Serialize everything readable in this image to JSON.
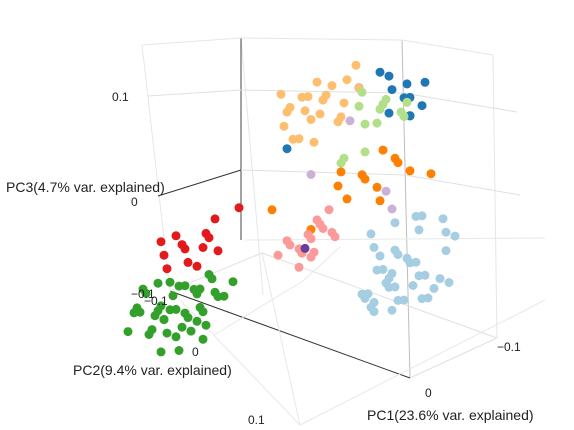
{
  "chart_data": {
    "type": "scatter",
    "dimensions": 3,
    "grid": true,
    "axes": {
      "x": {
        "title": "PC1(23.6% var. explained)",
        "ticks": [
          "−0.1",
          "0"
        ],
        "range": [
          -0.15,
          0.15
        ]
      },
      "y": {
        "title": "PC2(9.4% var. explained)",
        "ticks": [
          "−0.1",
          "0",
          "0.1"
        ],
        "range": [
          -0.15,
          0.15
        ]
      },
      "z": {
        "title": "PC3(4.7% var. explained)",
        "ticks": [
          "−0.1",
          "0",
          "0.1"
        ],
        "range": [
          -0.12,
          0.14
        ]
      }
    },
    "series": [
      {
        "color": "#1f78b4",
        "points": [
          [
            -0.03,
            -0.04,
            0.11
          ],
          [
            -0.02,
            -0.05,
            0.12
          ],
          [
            -0.04,
            -0.04,
            0.1
          ],
          [
            -0.03,
            -0.06,
            0.09
          ],
          [
            -0.01,
            -0.03,
            0.12
          ],
          [
            -0.05,
            -0.05,
            0.11
          ],
          [
            -0.02,
            -0.07,
            0.1
          ],
          [
            0.02,
            0.01,
            0.08
          ],
          [
            0.0,
            -0.1,
            0.05
          ],
          [
            -0.06,
            -0.02,
            0.09
          ],
          [
            0.01,
            -0.09,
            0.06
          ],
          [
            -0.02,
            -0.04,
            0.13
          ],
          [
            -0.04,
            -0.06,
            0.08
          ]
        ]
      },
      {
        "color": "#fdbf6f",
        "points": [
          [
            0.04,
            -0.06,
            0.1
          ],
          [
            0.05,
            -0.05,
            0.09
          ],
          [
            0.03,
            -0.07,
            0.11
          ],
          [
            0.06,
            -0.04,
            0.08
          ],
          [
            0.04,
            -0.05,
            0.12
          ],
          [
            0.05,
            -0.07,
            0.09
          ],
          [
            0.03,
            -0.06,
            0.07
          ],
          [
            0.06,
            -0.06,
            0.1
          ],
          [
            0.04,
            -0.08,
            0.08
          ],
          [
            0.07,
            -0.05,
            0.11
          ],
          [
            0.05,
            -0.03,
            0.1
          ],
          [
            0.02,
            -0.05,
            0.08
          ],
          [
            0.06,
            -0.07,
            0.07
          ],
          [
            0.03,
            -0.04,
            0.09
          ],
          [
            0.04,
            -0.04,
            0.11
          ],
          [
            0.05,
            -0.08,
            0.1
          ],
          [
            0.07,
            -0.06,
            0.09
          ],
          [
            0.02,
            -0.07,
            0.1
          ],
          [
            0.06,
            -0.05,
            0.06
          ],
          [
            0.04,
            -0.03,
            0.07
          ],
          [
            0.03,
            -0.08,
            0.12
          ],
          [
            0.05,
            -0.06,
            0.05
          ]
        ]
      },
      {
        "color": "#b2df8a",
        "points": [
          [
            0.0,
            -0.07,
            0.08
          ],
          [
            -0.01,
            -0.06,
            0.09
          ],
          [
            0.01,
            -0.08,
            0.07
          ],
          [
            -0.02,
            -0.07,
            0.08
          ],
          [
            0.0,
            -0.05,
            0.07
          ],
          [
            0.01,
            -0.06,
            0.1
          ],
          [
            -0.01,
            -0.08,
            0.06
          ],
          [
            0.02,
            -0.07,
            0.08
          ],
          [
            0.03,
            -0.09,
            0.02
          ],
          [
            0.04,
            -0.08,
            0.02
          ],
          [
            0.05,
            -0.09,
            0.01
          ],
          [
            0.0,
            -0.09,
            0.06
          ],
          [
            -0.01,
            -0.05,
            0.07
          ]
        ]
      },
      {
        "color": "#cab2d6",
        "points": [
          [
            0.02,
            -0.06,
            0.07
          ],
          [
            0.03,
            -0.03,
            0.03
          ],
          [
            -0.06,
            0.0,
            0.0
          ],
          [
            -0.04,
            -0.02,
            0.01
          ]
        ]
      },
      {
        "color": "#ff7f00",
        "points": [
          [
            -0.03,
            -0.03,
            0.05
          ],
          [
            -0.04,
            -0.03,
            0.04
          ],
          [
            -0.05,
            -0.02,
            0.04
          ],
          [
            -0.03,
            -0.01,
            0.03
          ],
          [
            -0.06,
            -0.02,
            0.03
          ],
          [
            -0.04,
            -0.01,
            0.02
          ],
          [
            -0.05,
            0.0,
            0.01
          ],
          [
            -0.02,
            -0.02,
            0.03
          ],
          [
            -0.01,
            -0.01,
            0.04
          ],
          [
            -0.03,
            0.01,
            0.02
          ],
          [
            0.0,
            -0.02,
            0.02
          ],
          [
            0.04,
            0.0,
            0.01
          ],
          [
            -0.07,
            -0.03,
            0.02
          ],
          [
            0.0,
            0.01,
            -0.01
          ]
        ]
      },
      {
        "color": "#e31a1c",
        "points": [
          [
            0.05,
            0.08,
            0.0
          ],
          [
            0.06,
            0.07,
            0.01
          ],
          [
            0.05,
            0.06,
            0.02
          ],
          [
            0.06,
            0.09,
            0.0
          ],
          [
            0.04,
            0.07,
            0.02
          ],
          [
            0.07,
            0.06,
            0.01
          ],
          [
            0.05,
            0.05,
            0.03
          ],
          [
            0.06,
            0.08,
            0.03
          ],
          [
            0.04,
            0.06,
            0.0
          ],
          [
            0.07,
            0.08,
            0.01
          ],
          [
            0.05,
            0.07,
            -0.01
          ],
          [
            0.03,
            0.05,
            0.04
          ],
          [
            0.06,
            0.05,
            0.0
          ],
          [
            0.08,
            0.07,
            0.02
          ]
        ]
      },
      {
        "color": "#33a02c",
        "points": [
          [
            0.04,
            0.08,
            -0.03
          ],
          [
            0.05,
            0.09,
            -0.02
          ],
          [
            0.06,
            0.1,
            -0.04
          ],
          [
            0.03,
            0.09,
            -0.05
          ],
          [
            0.05,
            0.11,
            -0.03
          ],
          [
            0.04,
            0.1,
            -0.06
          ],
          [
            0.06,
            0.08,
            -0.05
          ],
          [
            0.02,
            0.09,
            -0.03
          ],
          [
            0.07,
            0.1,
            -0.02
          ],
          [
            0.05,
            0.07,
            -0.04
          ],
          [
            0.03,
            0.11,
            -0.04
          ],
          [
            0.06,
            0.11,
            -0.06
          ],
          [
            0.04,
            0.07,
            -0.02
          ],
          [
            0.02,
            0.1,
            -0.06
          ],
          [
            0.07,
            0.09,
            -0.05
          ],
          [
            0.05,
            0.12,
            -0.05
          ],
          [
            0.03,
            0.08,
            -0.02
          ],
          [
            0.06,
            0.09,
            -0.07
          ],
          [
            0.04,
            0.11,
            -0.02
          ],
          [
            0.05,
            0.1,
            -0.01
          ],
          [
            0.02,
            0.08,
            -0.04
          ],
          [
            0.07,
            0.11,
            -0.03
          ],
          [
            0.04,
            0.09,
            -0.07
          ],
          [
            0.06,
            0.12,
            -0.03
          ],
          [
            0.03,
            0.1,
            -0.02
          ],
          [
            0.05,
            0.08,
            -0.06
          ],
          [
            0.08,
            0.1,
            -0.04
          ],
          [
            0.02,
            0.11,
            -0.05
          ],
          [
            0.06,
            0.07,
            -0.03
          ],
          [
            0.04,
            0.12,
            -0.04
          ],
          [
            0.03,
            0.09,
            -0.08
          ],
          [
            0.05,
            0.11,
            -0.08
          ],
          [
            0.07,
            0.08,
            -0.06
          ],
          [
            0.01,
            0.1,
            -0.03
          ],
          [
            0.06,
            0.1,
            -0.01
          ],
          [
            0.04,
            0.08,
            -0.05
          ],
          [
            0.05,
            0.09,
            -0.09
          ],
          [
            0.03,
            0.12,
            -0.06
          ],
          [
            0.07,
            0.12,
            -0.05
          ],
          [
            0.02,
            0.07,
            -0.03
          ],
          [
            0.08,
            0.09,
            -0.02
          ],
          [
            0.05,
            0.1,
            -0.04
          ]
        ]
      },
      {
        "color": "#fb9a99",
        "points": [
          [
            0.0,
            0.01,
            -0.02
          ],
          [
            0.01,
            0.0,
            -0.02
          ],
          [
            -0.01,
            0.01,
            -0.01
          ],
          [
            0.0,
            0.02,
            -0.03
          ],
          [
            0.01,
            0.01,
            -0.03
          ],
          [
            -0.01,
            0.0,
            -0.02
          ],
          [
            0.02,
            0.01,
            -0.02
          ],
          [
            0.0,
            0.0,
            -0.01
          ],
          [
            0.01,
            0.02,
            -0.02
          ],
          [
            -0.02,
            0.01,
            -0.02
          ],
          [
            0.0,
            0.01,
            -0.04
          ],
          [
            0.02,
            0.02,
            -0.03
          ],
          [
            0.01,
            -0.01,
            -0.01
          ],
          [
            0.0,
            -0.01,
            0.0
          ],
          [
            -0.01,
            0.02,
            -0.03
          ],
          [
            0.01,
            0.01,
            -0.05
          ]
        ]
      },
      {
        "color": "#6a3d9a",
        "points": [
          [
            0.005,
            0.01,
            -0.03
          ]
        ]
      },
      {
        "color": "#a6cee3",
        "points": [
          [
            -0.06,
            0.0,
            -0.07
          ],
          [
            -0.07,
            0.01,
            -0.08
          ],
          [
            -0.05,
            -0.01,
            -0.08
          ],
          [
            -0.08,
            0.0,
            -0.06
          ],
          [
            -0.06,
            0.02,
            -0.09
          ],
          [
            -0.07,
            -0.01,
            -0.09
          ],
          [
            -0.09,
            0.01,
            -0.07
          ],
          [
            -0.05,
            0.01,
            -0.1
          ],
          [
            -0.08,
            -0.01,
            -0.08
          ],
          [
            -0.06,
            -0.02,
            -0.07
          ],
          [
            -0.07,
            0.0,
            -0.1
          ],
          [
            -0.09,
            -0.02,
            -0.06
          ],
          [
            -0.04,
            0.0,
            -0.09
          ],
          [
            -0.08,
            0.02,
            -0.09
          ],
          [
            -0.06,
            0.01,
            -0.06
          ],
          [
            -0.05,
            -0.02,
            -0.06
          ],
          [
            -0.07,
            0.02,
            -0.07
          ],
          [
            -0.1,
            0.0,
            -0.08
          ],
          [
            -0.06,
            0.0,
            -0.11
          ],
          [
            -0.08,
            -0.02,
            -0.1
          ],
          [
            -0.09,
            0.0,
            -0.1
          ],
          [
            -0.05,
            0.02,
            -0.08
          ],
          [
            -0.07,
            -0.02,
            -0.11
          ],
          [
            -0.04,
            -0.01,
            -0.07
          ],
          [
            -0.06,
            0.03,
            -0.08
          ],
          [
            -0.08,
            0.01,
            -0.05
          ],
          [
            -0.1,
            -0.01,
            -0.09
          ],
          [
            -0.05,
            0.0,
            -0.05
          ],
          [
            -0.07,
            0.01,
            -0.04
          ],
          [
            -0.09,
            -0.03,
            -0.05
          ],
          [
            -0.03,
            -0.02,
            -0.05
          ],
          [
            -0.06,
            -0.03,
            -0.04
          ],
          [
            -0.08,
            -0.03,
            -0.03
          ],
          [
            -0.04,
            -0.03,
            -0.03
          ],
          [
            -0.07,
            -0.02,
            -0.02
          ],
          [
            -0.05,
            -0.04,
            -0.03
          ],
          [
            -0.09,
            -0.02,
            -0.04
          ],
          [
            -0.02,
            -0.03,
            -0.04
          ],
          [
            -0.06,
            0.02,
            -0.1
          ],
          [
            -0.08,
            0.03,
            -0.07
          ]
        ]
      }
    ]
  }
}
